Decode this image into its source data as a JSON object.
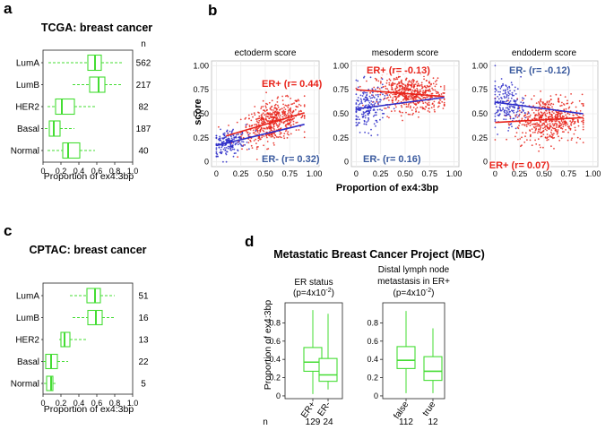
{
  "panels": {
    "a": "a",
    "b": "b",
    "c": "c",
    "d": "d"
  },
  "colors": {
    "green": "#44dd33",
    "red": "#e8231a",
    "blue": "#2b2bc8",
    "blue_text": "#3a5a9e",
    "grid": "#ececec"
  },
  "chart_data": [
    {
      "id": "a",
      "type": "boxplot",
      "orientation": "horizontal",
      "title": "TCGA: breast cancer",
      "n_header": "n",
      "xlabel": "Proportion of ex4:3bp",
      "xlim": [
        0,
        1
      ],
      "xticks": [
        "0",
        "0.2",
        "0.4",
        "0.6",
        "0.8",
        "1.0"
      ],
      "categories": [
        "LumA",
        "LumB",
        "HER2",
        "Basal",
        "Normal"
      ],
      "n": [
        "562",
        "217",
        "82",
        "187",
        "40"
      ],
      "boxes": [
        {
          "min": 0.06,
          "q1": 0.5,
          "median": 0.58,
          "q3": 0.65,
          "max": 0.89
        },
        {
          "min": 0.33,
          "q1": 0.52,
          "median": 0.62,
          "q3": 0.69,
          "max": 0.88
        },
        {
          "min": 0.05,
          "q1": 0.14,
          "median": 0.21,
          "q3": 0.35,
          "max": 0.6
        },
        {
          "min": 0.02,
          "q1": 0.07,
          "median": 0.12,
          "q3": 0.19,
          "max": 0.35
        },
        {
          "min": 0.05,
          "q1": 0.22,
          "median": 0.28,
          "q3": 0.41,
          "max": 0.58
        }
      ]
    },
    {
      "id": "b",
      "type": "scatter",
      "xlabel": "Proportion of ex4:3bp",
      "ylabel": "score",
      "xlim": [
        0,
        1
      ],
      "ylim": [
        0,
        1
      ],
      "xticks": [
        "0",
        "0.25",
        "0.50",
        "0.75",
        "1.00"
      ],
      "yticks": [
        "0",
        "0.25",
        "0.50",
        "0.75",
        "1.00"
      ],
      "subplots": [
        {
          "title": "ectoderm score",
          "series": [
            {
              "name": "ER+",
              "color": "red",
              "label": "ER+ (r= 0.44)",
              "x_center": 0.58,
              "x_spread": 0.16,
              "line": [
                [
                  0.1,
                  0.27
                ],
                [
                  0.9,
                  0.51
                ]
              ],
              "noise": 0.1
            },
            {
              "name": "ER-",
              "color": "blue",
              "label": "ER- (r= 0.32)",
              "x_center": 0.12,
              "x_spread": 0.09,
              "line": [
                [
                  0.0,
                  0.17
                ],
                [
                  0.9,
                  0.39
                ]
              ],
              "noise": 0.07
            }
          ]
        },
        {
          "title": "mesoderm score",
          "series": [
            {
              "name": "ER+",
              "color": "red",
              "label": "ER+ (r= -0.13)",
              "x_center": 0.55,
              "x_spread": 0.17,
              "line": [
                [
                  0.0,
                  0.75
                ],
                [
                  0.9,
                  0.68
                ]
              ],
              "noise": 0.09
            },
            {
              "name": "ER-",
              "color": "blue",
              "label": "ER- (r= 0.16)",
              "x_center": 0.12,
              "x_spread": 0.09,
              "line": [
                [
                  0.0,
                  0.55
                ],
                [
                  0.9,
                  0.67
                ]
              ],
              "noise": 0.12
            }
          ]
        },
        {
          "title": "endoderm score",
          "series": [
            {
              "name": "ER+",
              "color": "red",
              "label": "ER+ (r= 0.07)",
              "x_center": 0.55,
              "x_spread": 0.17,
              "line": [
                [
                  0.0,
                  0.41
                ],
                [
                  0.9,
                  0.46
                ]
              ],
              "noise": 0.12
            },
            {
              "name": "ER-",
              "color": "blue",
              "label": "ER- (r= -0.12)",
              "x_center": 0.12,
              "x_spread": 0.09,
              "line": [
                [
                  0.0,
                  0.62
                ],
                [
                  0.9,
                  0.5
                ]
              ],
              "noise": 0.11
            }
          ]
        }
      ]
    },
    {
      "id": "c",
      "type": "boxplot",
      "orientation": "horizontal",
      "title": "CPTAC: breast cancer",
      "xlabel": "Proportion of ex4:3bp",
      "xlim": [
        0,
        1
      ],
      "xticks": [
        "0",
        "0.2",
        "0.4",
        "0.6",
        "0.8",
        "1.0"
      ],
      "categories": [
        "LumA",
        "LumB",
        "HER2",
        "Basal",
        "Normal"
      ],
      "n": [
        "51",
        "16",
        "13",
        "22",
        "5"
      ],
      "boxes": [
        {
          "min": 0.3,
          "q1": 0.49,
          "median": 0.58,
          "q3": 0.64,
          "max": 0.8
        },
        {
          "min": 0.33,
          "q1": 0.5,
          "median": 0.59,
          "q3": 0.66,
          "max": 0.79
        },
        {
          "min": 0.18,
          "q1": 0.2,
          "median": 0.24,
          "q3": 0.3,
          "max": 0.48
        },
        {
          "min": 0.0,
          "q1": 0.03,
          "median": 0.09,
          "q3": 0.16,
          "max": 0.28
        },
        {
          "min": 0.01,
          "q1": 0.04,
          "median": 0.09,
          "q3": 0.11,
          "max": 0.14
        }
      ]
    },
    {
      "id": "d",
      "type": "boxplot",
      "orientation": "vertical",
      "title": "Metastatic Breast Cancer Project  (MBC)",
      "ylabel": "Proportion of ex4:3bp",
      "ylim": [
        0,
        1
      ],
      "yticks": [
        "0",
        "0.2",
        "0.4",
        "0.6",
        "0.8"
      ],
      "n_label": "n",
      "subplots": [
        {
          "title_lines": [
            "ER status"
          ],
          "pvalue": {
            "base": "(p=4x10",
            "exp": "-2",
            "tail": ")"
          },
          "categories": [
            "ER+",
            "ER-"
          ],
          "n": [
            "129",
            "24"
          ],
          "boxes": [
            {
              "min": 0.02,
              "q1": 0.27,
              "median": 0.37,
              "q3": 0.53,
              "max": 0.94
            },
            {
              "min": 0.07,
              "q1": 0.16,
              "median": 0.23,
              "q3": 0.41,
              "max": 0.9
            }
          ]
        },
        {
          "title_lines": [
            "Distal lymph node",
            "metastasis in ER+"
          ],
          "pvalue": {
            "base": "(p=4x10",
            "exp": "-2",
            "tail": ")"
          },
          "categories": [
            "false",
            "true"
          ],
          "n": [
            "112",
            "12"
          ],
          "boxes": [
            {
              "min": 0.03,
              "q1": 0.3,
              "median": 0.39,
              "q3": 0.54,
              "max": 0.93
            },
            {
              "min": 0.03,
              "q1": 0.17,
              "median": 0.27,
              "q3": 0.43,
              "max": 0.74
            }
          ]
        }
      ]
    }
  ]
}
